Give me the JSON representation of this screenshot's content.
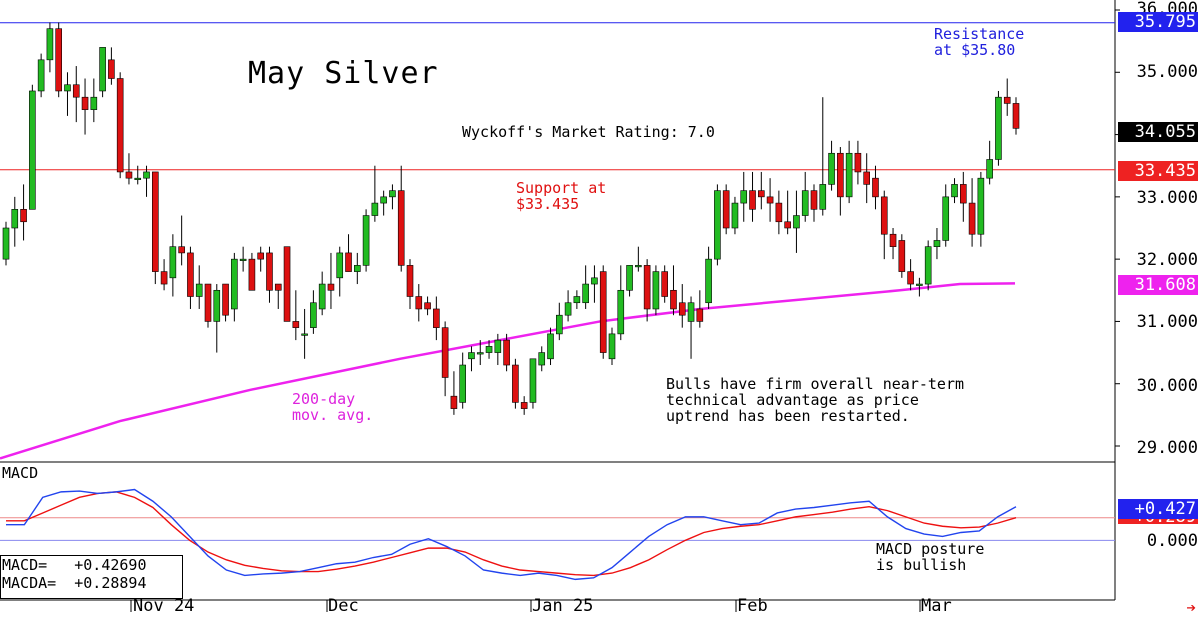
{
  "title": "May Silver",
  "rating_text": "Wyckoff's Market Rating: 7.0",
  "annotations": {
    "resistance": "Resistance\nat $35.80",
    "support": "Support at\n$33.435",
    "moving_average": "200-day\nmov. avg.",
    "bulls": "Bulls have firm overall near-term\ntechnical advantage as price\nuptrend has been restarted.",
    "macd_note": "MACD posture\nis bullish"
  },
  "price_ticks": [
    "36.000",
    "35.000",
    "34.000",
    "33.000",
    "32.000",
    "31.000",
    "30.000",
    "29.000"
  ],
  "price_tags": {
    "resistance": "35.795",
    "last": "34.055",
    "support": "33.435",
    "ma": "31.608"
  },
  "macd_panel": {
    "label": "MACD",
    "zero_tick": "0.000",
    "macd_tag": "+0.427",
    "signal_tag": "+0.289",
    "readout_macd": "MACD=   +0.42690",
    "readout_macda": "MACDA=  +0.28894"
  },
  "x_labels": [
    "Nov 24",
    "Dec",
    "Jan 25",
    "Feb",
    "Mar"
  ],
  "colors": {
    "up": "#22bb22",
    "down": "#dd1111",
    "ma": "#ee22ee",
    "macd": "#2244ee",
    "signal": "#ee1111",
    "resistance": "#2222ee",
    "support": "#ee2222"
  },
  "chart_data": {
    "type": "candlestick",
    "title": "May Silver",
    "ylim": [
      28.8,
      36.0
    ],
    "resistance": 35.795,
    "support": 33.435,
    "candles": [
      [
        32.0,
        32.6,
        31.9,
        32.5
      ],
      [
        32.5,
        33.0,
        32.2,
        32.8
      ],
      [
        32.8,
        33.2,
        32.3,
        32.6
      ],
      [
        32.8,
        34.8,
        32.8,
        34.7
      ],
      [
        34.7,
        35.3,
        34.6,
        35.2
      ],
      [
        35.2,
        35.8,
        35.0,
        35.7
      ],
      [
        35.7,
        35.8,
        34.6,
        34.7
      ],
      [
        34.7,
        35.0,
        34.3,
        34.8
      ],
      [
        34.8,
        35.1,
        34.2,
        34.6
      ],
      [
        34.6,
        34.9,
        34.0,
        34.4
      ],
      [
        34.4,
        34.9,
        34.2,
        34.6
      ],
      [
        34.7,
        35.4,
        34.6,
        35.4
      ],
      [
        35.2,
        35.4,
        34.8,
        34.9
      ],
      [
        34.9,
        35.0,
        33.3,
        33.4
      ],
      [
        33.4,
        33.7,
        33.2,
        33.3
      ],
      [
        33.3,
        33.5,
        33.2,
        33.3
      ],
      [
        33.3,
        33.5,
        33.0,
        33.4
      ],
      [
        33.4,
        33.4,
        31.6,
        31.8
      ],
      [
        31.8,
        32.0,
        31.5,
        31.6
      ],
      [
        31.7,
        32.4,
        31.4,
        32.2
      ],
      [
        32.2,
        32.7,
        31.9,
        32.1
      ],
      [
        32.1,
        32.2,
        31.2,
        31.4
      ],
      [
        31.4,
        31.9,
        31.2,
        31.6
      ],
      [
        31.6,
        31.6,
        30.9,
        31.0
      ],
      [
        31.0,
        31.6,
        30.5,
        31.5
      ],
      [
        31.6,
        31.6,
        31.0,
        31.1
      ],
      [
        31.2,
        32.1,
        31.0,
        32.0
      ],
      [
        32.0,
        32.2,
        31.8,
        32.0
      ],
      [
        32.0,
        32.1,
        31.5,
        31.5
      ],
      [
        32.1,
        32.2,
        31.8,
        32.0
      ],
      [
        32.1,
        32.2,
        31.3,
        31.5
      ],
      [
        31.6,
        31.6,
        31.2,
        31.5
      ],
      [
        32.2,
        32.2,
        31.0,
        31.0
      ],
      [
        31.0,
        31.5,
        30.7,
        30.9
      ],
      [
        30.8,
        31.2,
        30.4,
        30.8
      ],
      [
        30.9,
        31.5,
        30.8,
        31.3
      ],
      [
        31.2,
        31.8,
        31.1,
        31.6
      ],
      [
        31.6,
        32.1,
        31.2,
        31.5
      ],
      [
        31.7,
        32.2,
        31.4,
        32.1
      ],
      [
        32.1,
        32.4,
        31.8,
        31.8
      ],
      [
        31.8,
        32.1,
        31.6,
        31.9
      ],
      [
        31.9,
        32.8,
        31.8,
        32.7
      ],
      [
        32.7,
        33.5,
        32.6,
        32.9
      ],
      [
        32.9,
        33.1,
        32.7,
        33.0
      ],
      [
        33.0,
        33.2,
        32.8,
        33.1
      ],
      [
        33.1,
        33.5,
        31.8,
        31.9
      ],
      [
        31.9,
        32.0,
        31.2,
        31.4
      ],
      [
        31.4,
        31.6,
        31.0,
        31.2
      ],
      [
        31.3,
        31.4,
        31.1,
        31.2
      ],
      [
        31.2,
        31.4,
        30.7,
        30.9
      ],
      [
        30.9,
        31.0,
        29.8,
        30.1
      ],
      [
        29.8,
        30.2,
        29.5,
        29.6
      ],
      [
        29.7,
        30.5,
        29.6,
        30.3
      ],
      [
        30.4,
        30.6,
        30.2,
        30.5
      ],
      [
        30.5,
        30.7,
        30.3,
        30.5
      ],
      [
        30.5,
        30.7,
        30.4,
        30.6
      ],
      [
        30.5,
        30.8,
        30.3,
        30.7
      ],
      [
        30.7,
        30.8,
        30.2,
        30.3
      ],
      [
        30.3,
        30.4,
        29.6,
        29.7
      ],
      [
        29.7,
        29.8,
        29.5,
        29.6
      ],
      [
        29.7,
        30.4,
        29.6,
        30.4
      ],
      [
        30.3,
        30.6,
        30.2,
        30.5
      ],
      [
        30.4,
        30.9,
        30.3,
        30.8
      ],
      [
        30.8,
        31.3,
        30.7,
        31.1
      ],
      [
        31.1,
        31.5,
        31.0,
        31.3
      ],
      [
        31.3,
        31.5,
        31.2,
        31.4
      ],
      [
        31.3,
        31.9,
        31.2,
        31.6
      ],
      [
        31.6,
        31.9,
        31.3,
        31.7
      ],
      [
        31.8,
        31.9,
        30.4,
        30.5
      ],
      [
        30.4,
        30.9,
        30.3,
        30.8
      ],
      [
        30.8,
        31.9,
        30.7,
        31.5
      ],
      [
        31.5,
        31.9,
        31.4,
        31.9
      ],
      [
        31.9,
        32.2,
        31.8,
        31.9
      ],
      [
        31.9,
        32.0,
        31.0,
        31.2
      ],
      [
        31.2,
        31.9,
        31.1,
        31.8
      ],
      [
        31.8,
        31.9,
        31.3,
        31.4
      ],
      [
        31.5,
        31.9,
        31.1,
        31.2
      ],
      [
        31.3,
        31.6,
        30.9,
        31.1
      ],
      [
        31.0,
        31.4,
        30.4,
        31.3
      ],
      [
        31.2,
        31.5,
        30.9,
        31.0
      ],
      [
        31.3,
        32.2,
        31.2,
        32.0
      ],
      [
        32.0,
        33.2,
        31.9,
        33.1
      ],
      [
        33.1,
        33.2,
        32.4,
        32.5
      ],
      [
        32.5,
        33.0,
        32.4,
        32.9
      ],
      [
        32.9,
        33.4,
        32.6,
        33.1
      ],
      [
        33.1,
        33.4,
        32.6,
        32.8
      ],
      [
        33.1,
        33.4,
        32.8,
        33.0
      ],
      [
        33.0,
        33.3,
        32.6,
        32.9
      ],
      [
        32.9,
        33.1,
        32.4,
        32.6
      ],
      [
        32.6,
        33.1,
        32.4,
        32.5
      ],
      [
        32.5,
        33.1,
        32.1,
        32.7
      ],
      [
        32.7,
        33.4,
        32.6,
        33.1
      ],
      [
        33.1,
        33.2,
        32.6,
        32.8
      ],
      [
        32.8,
        34.6,
        32.7,
        33.2
      ],
      [
        33.2,
        33.9,
        33.1,
        33.7
      ],
      [
        33.7,
        33.8,
        32.7,
        33.0
      ],
      [
        33.0,
        33.9,
        32.9,
        33.7
      ],
      [
        33.7,
        33.9,
        33.2,
        33.4
      ],
      [
        33.4,
        33.7,
        32.9,
        33.2
      ],
      [
        33.3,
        33.5,
        32.8,
        33.0
      ],
      [
        33.0,
        33.1,
        32.0,
        32.4
      ],
      [
        32.4,
        32.5,
        32.0,
        32.2
      ],
      [
        32.3,
        32.4,
        31.7,
        31.8
      ],
      [
        31.8,
        32.0,
        31.5,
        31.6
      ],
      [
        31.6,
        31.7,
        31.4,
        31.6
      ],
      [
        31.6,
        32.3,
        31.5,
        32.2
      ],
      [
        32.2,
        32.5,
        32.0,
        32.3
      ],
      [
        32.3,
        33.2,
        32.2,
        33.0
      ],
      [
        33.0,
        33.3,
        32.9,
        33.2
      ],
      [
        33.2,
        33.4,
        32.6,
        32.9
      ],
      [
        32.9,
        33.3,
        32.2,
        32.4
      ],
      [
        32.4,
        33.4,
        32.2,
        33.3
      ],
      [
        33.3,
        33.9,
        33.2,
        33.6
      ],
      [
        33.6,
        34.7,
        33.5,
        34.6
      ],
      [
        34.6,
        34.9,
        34.3,
        34.5
      ],
      [
        34.5,
        34.6,
        34.0,
        34.1
      ]
    ],
    "ma_200": [
      [
        0,
        28.8
      ],
      [
        120,
        29.4
      ],
      [
        250,
        29.9
      ],
      [
        400,
        30.4
      ],
      [
        500,
        30.7
      ],
      [
        600,
        31.0
      ],
      [
        700,
        31.2
      ],
      [
        800,
        31.35
      ],
      [
        900,
        31.5
      ],
      [
        960,
        31.6
      ],
      [
        1015,
        31.61
      ]
    ],
    "macd_ylim": [
      -0.7,
      0.9
    ],
    "macd": [
      0.2,
      0.2,
      0.55,
      0.62,
      0.63,
      0.6,
      0.62,
      0.65,
      0.5,
      0.3,
      0.05,
      -0.2,
      -0.38,
      -0.45,
      -0.43,
      -0.42,
      -0.4,
      -0.35,
      -0.3,
      -0.28,
      -0.22,
      -0.18,
      -0.05,
      0.02,
      -0.08,
      -0.2,
      -0.38,
      -0.42,
      -0.45,
      -0.42,
      -0.45,
      -0.5,
      -0.48,
      -0.35,
      -0.15,
      0.05,
      0.2,
      0.3,
      0.3,
      0.25,
      0.2,
      0.22,
      0.35,
      0.4,
      0.42,
      0.45,
      0.48,
      0.5,
      0.3,
      0.15,
      0.08,
      0.05,
      0.1,
      0.12,
      0.3,
      0.43
    ],
    "signal": [
      0.25,
      0.25,
      0.35,
      0.45,
      0.55,
      0.6,
      0.62,
      0.55,
      0.42,
      0.2,
      0.0,
      -0.15,
      -0.25,
      -0.32,
      -0.36,
      -0.39,
      -0.4,
      -0.4,
      -0.37,
      -0.33,
      -0.28,
      -0.22,
      -0.16,
      -0.1,
      -0.1,
      -0.15,
      -0.25,
      -0.33,
      -0.38,
      -0.4,
      -0.42,
      -0.44,
      -0.45,
      -0.42,
      -0.35,
      -0.25,
      -0.12,
      0.0,
      0.1,
      0.15,
      0.18,
      0.2,
      0.25,
      0.3,
      0.33,
      0.36,
      0.4,
      0.43,
      0.38,
      0.3,
      0.22,
      0.18,
      0.16,
      0.17,
      0.22,
      0.29
    ]
  }
}
